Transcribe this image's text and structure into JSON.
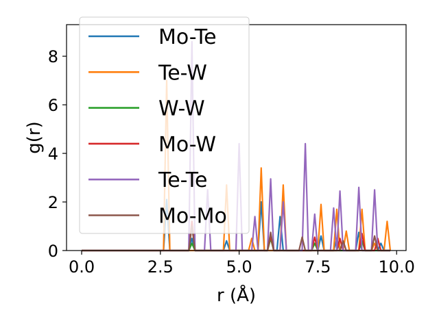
{
  "chart_data": {
    "type": "line",
    "xlabel": "r (Å)",
    "ylabel": "g(r)",
    "xlim": [
      -0.48,
      10.3
    ],
    "ylim": [
      0,
      9.3
    ],
    "xticks": [
      "0.0",
      "2.5",
      "5.0",
      "7.5",
      "10.0"
    ],
    "xtick_values": [
      0,
      2.5,
      5.0,
      7.5,
      10.0
    ],
    "yticks": [
      "0",
      "2",
      "4",
      "6",
      "8"
    ],
    "ytick_values": [
      0,
      2,
      4,
      6,
      8
    ],
    "grid": false,
    "legend_position": "upper-left",
    "series": [
      {
        "name": "Mo-Te",
        "color": "#1f77b4",
        "points": [
          [
            0,
            0
          ],
          [
            2.6,
            0
          ],
          [
            2.7,
            2.1
          ],
          [
            2.8,
            0
          ],
          [
            3.4,
            0
          ],
          [
            3.5,
            0.5
          ],
          [
            3.6,
            0
          ],
          [
            4.5,
            0
          ],
          [
            4.6,
            0.4
          ],
          [
            4.7,
            0
          ],
          [
            5.6,
            0
          ],
          [
            5.7,
            2.0
          ],
          [
            5.8,
            0
          ],
          [
            6.2,
            0
          ],
          [
            6.3,
            1.4
          ],
          [
            6.4,
            0
          ],
          [
            7.5,
            0
          ],
          [
            7.6,
            0.6
          ],
          [
            7.7,
            0
          ],
          [
            8.0,
            0
          ],
          [
            8.1,
            0.5
          ],
          [
            8.2,
            0
          ],
          [
            8.7,
            0
          ],
          [
            8.8,
            0.75
          ],
          [
            8.9,
            0
          ],
          [
            9.4,
            0
          ],
          [
            9.5,
            0.3
          ],
          [
            9.6,
            0
          ],
          [
            9.8,
            0
          ]
        ]
      },
      {
        "name": "Te-W",
        "color": "#ff7f0e",
        "points": [
          [
            0,
            0
          ],
          [
            2.6,
            0
          ],
          [
            2.7,
            7.0
          ],
          [
            2.8,
            0
          ],
          [
            4.5,
            0
          ],
          [
            4.6,
            2.7
          ],
          [
            4.7,
            0
          ],
          [
            5.3,
            0
          ],
          [
            5.4,
            0.5
          ],
          [
            5.5,
            0
          ],
          [
            5.6,
            0
          ],
          [
            5.7,
            3.4
          ],
          [
            5.8,
            0
          ],
          [
            6.3,
            0
          ],
          [
            6.4,
            2.7
          ],
          [
            6.5,
            0
          ],
          [
            7.5,
            0
          ],
          [
            7.6,
            1.9
          ],
          [
            7.7,
            0
          ],
          [
            8.0,
            0
          ],
          [
            8.1,
            1.7
          ],
          [
            8.2,
            0
          ],
          [
            8.3,
            0
          ],
          [
            8.4,
            0.8
          ],
          [
            8.5,
            0
          ],
          [
            8.8,
            0
          ],
          [
            8.9,
            1.7
          ],
          [
            9.0,
            0
          ],
          [
            9.2,
            0
          ],
          [
            9.3,
            0.3
          ],
          [
            9.4,
            0
          ],
          [
            9.6,
            0
          ],
          [
            9.7,
            1.2
          ],
          [
            9.8,
            0
          ]
        ]
      },
      {
        "name": "W-W",
        "color": "#2ca02c",
        "points": [
          [
            0,
            0
          ],
          [
            3.4,
            0
          ],
          [
            3.5,
            0.3
          ],
          [
            3.6,
            0
          ],
          [
            5.9,
            0
          ],
          [
            6.0,
            0.5
          ],
          [
            6.1,
            0
          ],
          [
            7.3,
            0
          ],
          [
            7.4,
            0.3
          ],
          [
            7.5,
            0
          ],
          [
            8.8,
            0
          ],
          [
            8.9,
            0.4
          ],
          [
            9.0,
            0
          ],
          [
            9.8,
            0
          ]
        ]
      },
      {
        "name": "Mo-W",
        "color": "#d62728",
        "points": [
          [
            0,
            0
          ],
          [
            3.4,
            0
          ],
          [
            3.5,
            1.2
          ],
          [
            3.6,
            0
          ],
          [
            5.9,
            0
          ],
          [
            6.0,
            0.6
          ],
          [
            6.1,
            0
          ],
          [
            7.3,
            0
          ],
          [
            7.4,
            0.55
          ],
          [
            7.5,
            0
          ],
          [
            8.1,
            0
          ],
          [
            8.2,
            0.5
          ],
          [
            8.3,
            0
          ],
          [
            8.8,
            0
          ],
          [
            8.9,
            0.7
          ],
          [
            9.0,
            0
          ],
          [
            9.3,
            0
          ],
          [
            9.4,
            0.5
          ],
          [
            9.5,
            0
          ],
          [
            9.8,
            0
          ]
        ]
      },
      {
        "name": "Te-Te",
        "color": "#9467bd",
        "points": [
          [
            0,
            0
          ],
          [
            3.4,
            0
          ],
          [
            3.5,
            8.6
          ],
          [
            3.6,
            0
          ],
          [
            3.9,
            0
          ],
          [
            4.0,
            2.5
          ],
          [
            4.1,
            0
          ],
          [
            4.9,
            0
          ],
          [
            5.0,
            4.4
          ],
          [
            5.1,
            0
          ],
          [
            5.4,
            0
          ],
          [
            5.5,
            1.4
          ],
          [
            5.6,
            0
          ],
          [
            5.9,
            0
          ],
          [
            6.0,
            2.95
          ],
          [
            6.1,
            0
          ],
          [
            6.3,
            0
          ],
          [
            6.4,
            2.0
          ],
          [
            6.5,
            0
          ],
          [
            7.0,
            0
          ],
          [
            7.1,
            4.4
          ],
          [
            7.2,
            0
          ],
          [
            7.3,
            0
          ],
          [
            7.4,
            1.5
          ],
          [
            7.5,
            0
          ],
          [
            7.9,
            0
          ],
          [
            8.0,
            1.75
          ],
          [
            8.1,
            0
          ],
          [
            8.2,
            2.45
          ],
          [
            8.3,
            0
          ],
          [
            8.7,
            0
          ],
          [
            8.8,
            2.6
          ],
          [
            8.9,
            0
          ],
          [
            9.2,
            0
          ],
          [
            9.3,
            2.5
          ],
          [
            9.4,
            0
          ],
          [
            9.8,
            0
          ]
        ]
      },
      {
        "name": "Mo-Mo",
        "color": "#8c564b",
        "points": [
          [
            0,
            0
          ],
          [
            3.4,
            0
          ],
          [
            3.5,
            1.0
          ],
          [
            3.6,
            0
          ],
          [
            5.9,
            0
          ],
          [
            6.0,
            0.75
          ],
          [
            6.1,
            0
          ],
          [
            6.9,
            0
          ],
          [
            7.0,
            0.55
          ],
          [
            7.1,
            0
          ],
          [
            8.2,
            0
          ],
          [
            8.3,
            0.4
          ],
          [
            8.4,
            0
          ],
          [
            9.2,
            0
          ],
          [
            9.3,
            0.6
          ],
          [
            9.4,
            0
          ],
          [
            9.8,
            0
          ]
        ]
      }
    ]
  }
}
